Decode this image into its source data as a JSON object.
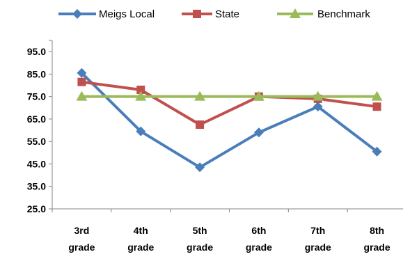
{
  "chart_data": {
    "type": "line",
    "categories": [
      [
        "3rd",
        "grade"
      ],
      [
        "4th",
        "grade"
      ],
      [
        "5th",
        "grade"
      ],
      [
        "6th",
        "grade"
      ],
      [
        "7th",
        "grade"
      ],
      [
        "8th",
        "grade"
      ]
    ],
    "series": [
      {
        "name": "Meigs Local",
        "color": "#4a7ebb",
        "marker": "diamond",
        "values": [
          85.5,
          59.5,
          43.5,
          59.0,
          70.5,
          50.5
        ]
      },
      {
        "name": "State",
        "color": "#c0504d",
        "marker": "square",
        "values": [
          81.5,
          78.0,
          62.5,
          75.0,
          74.0,
          70.5
        ]
      },
      {
        "name": "Benchmark",
        "color": "#9bbb59",
        "marker": "triangle",
        "values": [
          75.0,
          75.0,
          75.0,
          75.0,
          75.0,
          75.0
        ]
      }
    ],
    "yticks": [
      "25.0",
      "35.0",
      "45.0",
      "55.0",
      "65.0",
      "75.0",
      "85.0",
      "95.0"
    ],
    "ylim": [
      25,
      100
    ],
    "grid": false,
    "legend": "top"
  }
}
